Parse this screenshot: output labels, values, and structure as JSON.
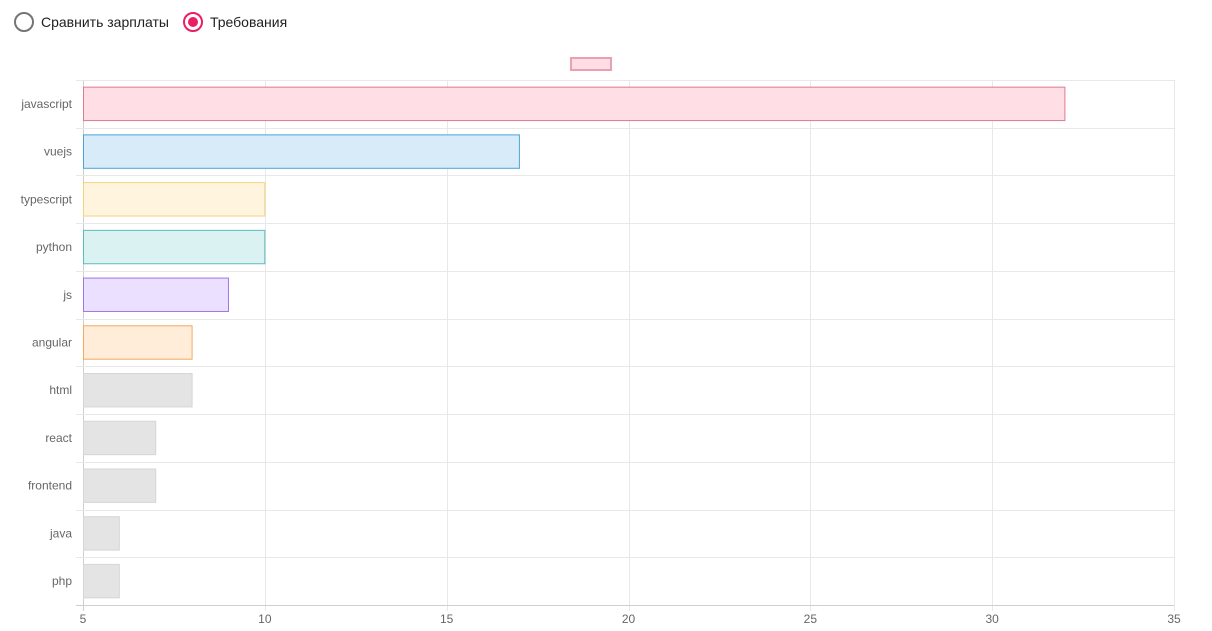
{
  "controls": {
    "options": [
      {
        "label": "Сравнить зарплаты",
        "checked": false
      },
      {
        "label": "Требования",
        "checked": true
      }
    ],
    "accent_color": "#e91e63"
  },
  "chart_data": {
    "type": "bar",
    "orientation": "horizontal",
    "categories": [
      "javascript",
      "vuejs",
      "typescript",
      "python",
      "js",
      "angular",
      "html",
      "react",
      "frontend",
      "java",
      "php"
    ],
    "values": [
      32,
      17,
      10,
      10,
      9,
      8,
      8,
      7,
      7,
      6,
      6
    ],
    "xlim": [
      5,
      35
    ],
    "xticks": [
      5,
      10,
      15,
      20,
      25,
      30,
      35
    ],
    "grid": true,
    "legend": {
      "position": "top",
      "label": "",
      "fill": "#ffdde4",
      "stroke": "#e9a0b3"
    },
    "colors": [
      {
        "fill": "#ffdfe5",
        "stroke": "#de7990"
      },
      {
        "fill": "#d7ebf9",
        "stroke": "#4ba3d6"
      },
      {
        "fill": "#fff5de",
        "stroke": "#f5d27e"
      },
      {
        "fill": "#dbf2f2",
        "stroke": "#5cbcbc"
      },
      {
        "fill": "#ebe0ff",
        "stroke": "#a275e6"
      },
      {
        "fill": "#ffecd9",
        "stroke": "#f2a95e"
      },
      {
        "fill": "#e4e4e4",
        "stroke": "#d6d6d6"
      },
      {
        "fill": "#e4e4e4",
        "stroke": "#d6d6d6"
      },
      {
        "fill": "#e4e4e4",
        "stroke": "#d6d6d6"
      },
      {
        "fill": "#e4e4e4",
        "stroke": "#d6d6d6"
      },
      {
        "fill": "#e4e4e4",
        "stroke": "#d6d6d6"
      }
    ]
  }
}
